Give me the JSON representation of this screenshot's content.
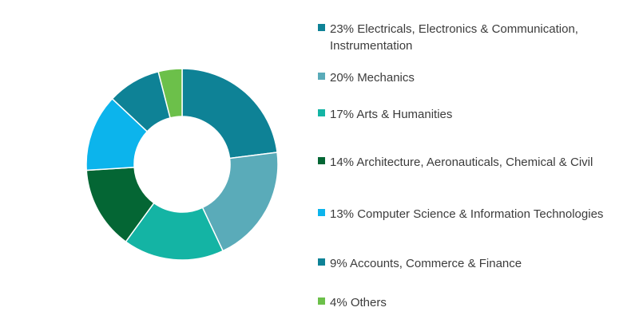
{
  "chart_data": {
    "type": "pie",
    "subtype": "donut",
    "title": "",
    "categories": [
      "Electricals, Electronics & Communication, Instrumentation",
      "Mechanics",
      "Arts & Humanities",
      "Architecture, Aeronauticals, Chemical & Civil",
      "Computer Science & Information Technologies",
      "Accounts, Commerce & Finance",
      "Others"
    ],
    "values": [
      23,
      20,
      17,
      14,
      13,
      9,
      4
    ],
    "unit": "%",
    "colors": [
      "#0e8296",
      "#5aabb9",
      "#14b4a4",
      "#046634",
      "#0cb4ec",
      "#0e8296",
      "#6cc04a"
    ],
    "legend": {
      "position": "right",
      "entries": [
        "23% Electricals, Electronics & Communication, Instrumentation",
        "20% Mechanics",
        "17% Arts & Humanities",
        "14% Architecture, Aeronauticals, Chemical & Civil",
        "13% Computer Science & Information Technologies",
        "9% Accounts, Commerce & Finance",
        "4% Others"
      ]
    }
  }
}
